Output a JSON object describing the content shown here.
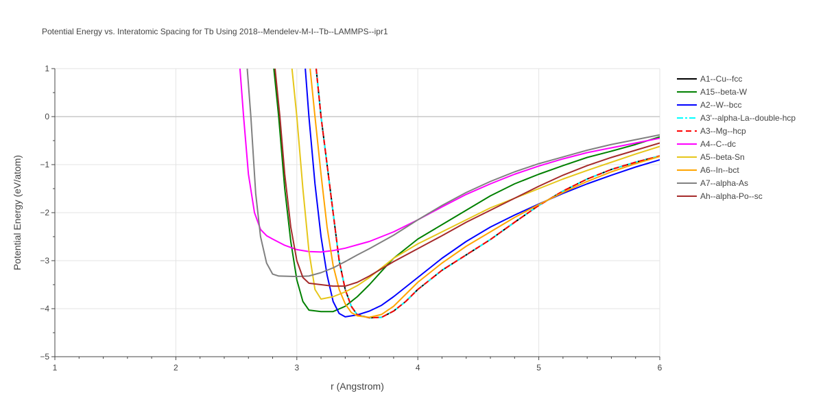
{
  "chart_data": {
    "type": "line",
    "title": "Potential Energy vs. Interatomic Spacing for Tb Using 2018--Mendelev-M-I--Tb--LAMMPS--ipr1",
    "xlabel": "r (Angstrom)",
    "ylabel": "Potential Energy (eV/atom)",
    "xlim": [
      1,
      6
    ],
    "ylim": [
      -5,
      1
    ],
    "xticks": [
      1,
      2,
      3,
      4,
      5,
      6
    ],
    "yticks": [
      1,
      0,
      -1,
      -2,
      -3,
      -4,
      -5
    ],
    "xtick_labels": [
      "1",
      "2",
      "3",
      "4",
      "5",
      "6"
    ],
    "ytick_labels": [
      "1",
      "0",
      "−1",
      "−2",
      "−3",
      "−4",
      "−5"
    ],
    "grid": true,
    "legend_position": "right",
    "series": [
      {
        "name": "A1--Cu--fcc",
        "color": "#000000",
        "dash": "solid",
        "points": [
          [
            3.16,
            1.0
          ],
          [
            3.2,
            0.0
          ],
          [
            3.25,
            -1.0
          ],
          [
            3.3,
            -2.0
          ],
          [
            3.35,
            -3.0
          ],
          [
            3.4,
            -3.6
          ],
          [
            3.45,
            -3.95
          ],
          [
            3.5,
            -4.13
          ],
          [
            3.6,
            -4.19
          ],
          [
            3.7,
            -4.18
          ],
          [
            3.8,
            -4.05
          ],
          [
            3.9,
            -3.85
          ],
          [
            4.0,
            -3.6
          ],
          [
            4.2,
            -3.2
          ],
          [
            4.4,
            -2.88
          ],
          [
            4.6,
            -2.56
          ],
          [
            4.8,
            -2.2
          ],
          [
            5.0,
            -1.85
          ],
          [
            5.2,
            -1.55
          ],
          [
            5.4,
            -1.3
          ],
          [
            5.6,
            -1.1
          ],
          [
            5.8,
            -0.95
          ],
          [
            6.0,
            -0.82
          ]
        ]
      },
      {
        "name": "A15--beta-W",
        "color": "#008000",
        "dash": "solid",
        "points": [
          [
            2.81,
            1.0
          ],
          [
            2.85,
            0.0
          ],
          [
            2.9,
            -1.5
          ],
          [
            2.95,
            -2.6
          ],
          [
            3.0,
            -3.4
          ],
          [
            3.05,
            -3.85
          ],
          [
            3.1,
            -4.03
          ],
          [
            3.2,
            -4.06
          ],
          [
            3.3,
            -4.06
          ],
          [
            3.4,
            -3.95
          ],
          [
            3.5,
            -3.75
          ],
          [
            3.6,
            -3.5
          ],
          [
            3.7,
            -3.22
          ],
          [
            3.8,
            -2.95
          ],
          [
            4.0,
            -2.55
          ],
          [
            4.2,
            -2.25
          ],
          [
            4.4,
            -1.95
          ],
          [
            4.6,
            -1.65
          ],
          [
            4.8,
            -1.4
          ],
          [
            5.0,
            -1.2
          ],
          [
            5.2,
            -1.02
          ],
          [
            5.4,
            -0.85
          ],
          [
            5.6,
            -0.72
          ],
          [
            5.8,
            -0.58
          ],
          [
            6.0,
            -0.42
          ]
        ]
      },
      {
        "name": "A2--W--bcc",
        "color": "#0000ff",
        "dash": "solid",
        "points": [
          [
            3.07,
            1.0
          ],
          [
            3.1,
            0.0
          ],
          [
            3.15,
            -1.4
          ],
          [
            3.2,
            -2.5
          ],
          [
            3.25,
            -3.3
          ],
          [
            3.3,
            -3.85
          ],
          [
            3.35,
            -4.1
          ],
          [
            3.4,
            -4.17
          ],
          [
            3.5,
            -4.13
          ],
          [
            3.6,
            -4.05
          ],
          [
            3.7,
            -3.93
          ],
          [
            3.8,
            -3.75
          ],
          [
            3.9,
            -3.55
          ],
          [
            4.0,
            -3.35
          ],
          [
            4.2,
            -2.95
          ],
          [
            4.4,
            -2.6
          ],
          [
            4.6,
            -2.3
          ],
          [
            4.8,
            -2.05
          ],
          [
            5.0,
            -1.82
          ],
          [
            5.2,
            -1.6
          ],
          [
            5.4,
            -1.4
          ],
          [
            5.6,
            -1.22
          ],
          [
            5.8,
            -1.05
          ],
          [
            6.0,
            -0.9
          ]
        ]
      },
      {
        "name": "A3'--alpha-La--double-hcp",
        "color": "#00ffff",
        "dash": "dashdot",
        "points": [
          [
            3.16,
            1.0
          ],
          [
            3.2,
            0.0
          ],
          [
            3.25,
            -1.0
          ],
          [
            3.3,
            -2.0
          ],
          [
            3.35,
            -3.0
          ],
          [
            3.4,
            -3.6
          ],
          [
            3.45,
            -3.95
          ],
          [
            3.5,
            -4.13
          ],
          [
            3.6,
            -4.19
          ],
          [
            3.7,
            -4.18
          ],
          [
            3.8,
            -4.05
          ],
          [
            3.9,
            -3.85
          ],
          [
            4.0,
            -3.6
          ],
          [
            4.2,
            -3.2
          ],
          [
            4.4,
            -2.88
          ],
          [
            4.6,
            -2.56
          ],
          [
            4.8,
            -2.2
          ],
          [
            5.0,
            -1.85
          ],
          [
            5.2,
            -1.55
          ],
          [
            5.4,
            -1.3
          ],
          [
            5.6,
            -1.1
          ],
          [
            5.8,
            -0.95
          ],
          [
            6.0,
            -0.82
          ]
        ]
      },
      {
        "name": "A3--Mg--hcp",
        "color": "#ff0000",
        "dash": "dash",
        "points": [
          [
            3.16,
            1.0
          ],
          [
            3.2,
            0.0
          ],
          [
            3.25,
            -1.0
          ],
          [
            3.3,
            -2.0
          ],
          [
            3.35,
            -3.0
          ],
          [
            3.4,
            -3.6
          ],
          [
            3.45,
            -3.95
          ],
          [
            3.5,
            -4.13
          ],
          [
            3.6,
            -4.19
          ],
          [
            3.7,
            -4.18
          ],
          [
            3.8,
            -4.05
          ],
          [
            3.9,
            -3.85
          ],
          [
            4.0,
            -3.6
          ],
          [
            4.2,
            -3.2
          ],
          [
            4.4,
            -2.88
          ],
          [
            4.6,
            -2.56
          ],
          [
            4.8,
            -2.2
          ],
          [
            5.0,
            -1.85
          ],
          [
            5.2,
            -1.55
          ],
          [
            5.4,
            -1.3
          ],
          [
            5.6,
            -1.1
          ],
          [
            5.8,
            -0.95
          ],
          [
            6.0,
            -0.82
          ]
        ]
      },
      {
        "name": "A4--C--dc",
        "color": "#ff00ff",
        "dash": "solid",
        "points": [
          [
            2.53,
            1.0
          ],
          [
            2.56,
            0.0
          ],
          [
            2.6,
            -1.2
          ],
          [
            2.65,
            -2.0
          ],
          [
            2.7,
            -2.35
          ],
          [
            2.75,
            -2.48
          ],
          [
            2.8,
            -2.55
          ],
          [
            2.9,
            -2.68
          ],
          [
            3.0,
            -2.77
          ],
          [
            3.1,
            -2.81
          ],
          [
            3.2,
            -2.82
          ],
          [
            3.3,
            -2.79
          ],
          [
            3.4,
            -2.74
          ],
          [
            3.5,
            -2.67
          ],
          [
            3.6,
            -2.6
          ],
          [
            3.8,
            -2.4
          ],
          [
            4.0,
            -2.15
          ],
          [
            4.2,
            -1.88
          ],
          [
            4.4,
            -1.62
          ],
          [
            4.6,
            -1.4
          ],
          [
            4.8,
            -1.2
          ],
          [
            5.0,
            -1.03
          ],
          [
            5.2,
            -0.88
          ],
          [
            5.4,
            -0.75
          ],
          [
            5.6,
            -0.65
          ],
          [
            5.8,
            -0.55
          ],
          [
            6.0,
            -0.45
          ]
        ]
      },
      {
        "name": "A5--beta-Sn",
        "color": "#e6c619",
        "dash": "solid",
        "points": [
          [
            2.96,
            1.0
          ],
          [
            3.0,
            0.0
          ],
          [
            3.05,
            -1.5
          ],
          [
            3.1,
            -2.8
          ],
          [
            3.15,
            -3.6
          ],
          [
            3.2,
            -3.8
          ],
          [
            3.3,
            -3.75
          ],
          [
            3.4,
            -3.65
          ],
          [
            3.5,
            -3.52
          ],
          [
            3.6,
            -3.35
          ],
          [
            3.7,
            -3.15
          ],
          [
            3.8,
            -2.95
          ],
          [
            4.0,
            -2.65
          ],
          [
            4.2,
            -2.4
          ],
          [
            4.4,
            -2.15
          ],
          [
            4.6,
            -1.9
          ],
          [
            4.8,
            -1.7
          ],
          [
            5.0,
            -1.5
          ],
          [
            5.2,
            -1.3
          ],
          [
            5.4,
            -1.12
          ],
          [
            5.6,
            -0.95
          ],
          [
            5.8,
            -0.78
          ],
          [
            6.0,
            -0.62
          ]
        ]
      },
      {
        "name": "A6--In--bct",
        "color": "#ffa500",
        "dash": "solid",
        "points": [
          [
            3.11,
            1.0
          ],
          [
            3.15,
            0.0
          ],
          [
            3.2,
            -1.2
          ],
          [
            3.25,
            -2.3
          ],
          [
            3.3,
            -3.1
          ],
          [
            3.35,
            -3.6
          ],
          [
            3.4,
            -3.9
          ],
          [
            3.45,
            -4.08
          ],
          [
            3.5,
            -4.15
          ],
          [
            3.6,
            -4.18
          ],
          [
            3.7,
            -4.12
          ],
          [
            3.8,
            -3.95
          ],
          [
            3.9,
            -3.7
          ],
          [
            4.0,
            -3.45
          ],
          [
            4.2,
            -3.05
          ],
          [
            4.4,
            -2.7
          ],
          [
            4.6,
            -2.4
          ],
          [
            4.8,
            -2.1
          ],
          [
            5.0,
            -1.83
          ],
          [
            5.2,
            -1.58
          ],
          [
            5.4,
            -1.35
          ],
          [
            5.6,
            -1.15
          ],
          [
            5.8,
            -0.98
          ],
          [
            6.0,
            -0.83
          ]
        ]
      },
      {
        "name": "A7--alpha-As",
        "color": "#808080",
        "dash": "solid",
        "points": [
          [
            2.59,
            1.0
          ],
          [
            2.62,
            0.0
          ],
          [
            2.66,
            -1.6
          ],
          [
            2.7,
            -2.5
          ],
          [
            2.75,
            -3.05
          ],
          [
            2.8,
            -3.28
          ],
          [
            2.85,
            -3.32
          ],
          [
            3.0,
            -3.33
          ],
          [
            3.1,
            -3.32
          ],
          [
            3.2,
            -3.25
          ],
          [
            3.3,
            -3.15
          ],
          [
            3.4,
            -3.02
          ],
          [
            3.5,
            -2.88
          ],
          [
            3.6,
            -2.75
          ],
          [
            3.8,
            -2.47
          ],
          [
            4.0,
            -2.15
          ],
          [
            4.2,
            -1.85
          ],
          [
            4.4,
            -1.58
          ],
          [
            4.6,
            -1.35
          ],
          [
            4.8,
            -1.15
          ],
          [
            5.0,
            -0.98
          ],
          [
            5.2,
            -0.84
          ],
          [
            5.4,
            -0.7
          ],
          [
            5.6,
            -0.58
          ],
          [
            5.8,
            -0.48
          ],
          [
            6.0,
            -0.38
          ]
        ]
      },
      {
        "name": "Ah--alpha-Po--sc",
        "color": "#a52a2a",
        "dash": "solid",
        "points": [
          [
            2.82,
            1.0
          ],
          [
            2.86,
            0.0
          ],
          [
            2.9,
            -1.2
          ],
          [
            2.95,
            -2.3
          ],
          [
            3.0,
            -3.0
          ],
          [
            3.05,
            -3.35
          ],
          [
            3.1,
            -3.47
          ],
          [
            3.2,
            -3.5
          ],
          [
            3.3,
            -3.53
          ],
          [
            3.4,
            -3.53
          ],
          [
            3.5,
            -3.45
          ],
          [
            3.6,
            -3.32
          ],
          [
            3.7,
            -3.17
          ],
          [
            3.8,
            -3.02
          ],
          [
            4.0,
            -2.75
          ],
          [
            4.2,
            -2.48
          ],
          [
            4.4,
            -2.2
          ],
          [
            4.6,
            -1.95
          ],
          [
            4.8,
            -1.7
          ],
          [
            5.0,
            -1.45
          ],
          [
            5.2,
            -1.22
          ],
          [
            5.4,
            -1.02
          ],
          [
            5.6,
            -0.85
          ],
          [
            5.8,
            -0.7
          ],
          [
            6.0,
            -0.55
          ]
        ]
      }
    ]
  }
}
